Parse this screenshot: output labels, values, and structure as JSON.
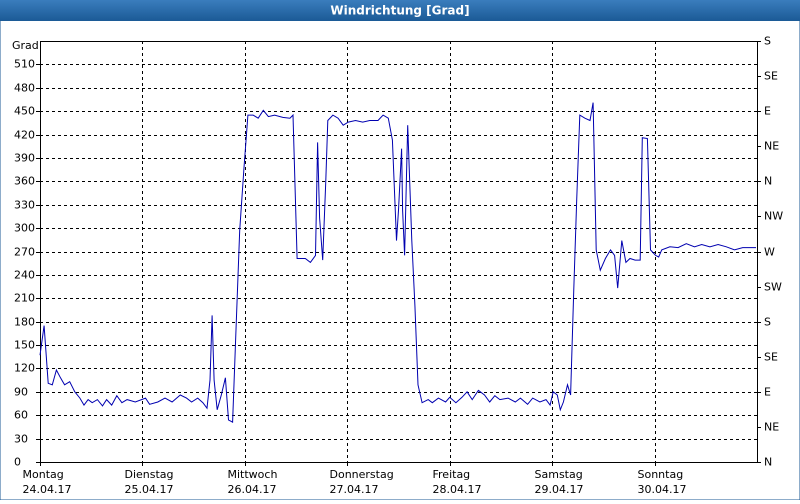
{
  "chart_data": {
    "type": "line",
    "title": "Windrichtung [Grad]",
    "y_label": "Grad",
    "xlim": [
      0,
      7
    ],
    "xticks": [
      {
        "value": 0,
        "label": "Montag"
      },
      {
        "value": 1,
        "label": "Dienstag"
      },
      {
        "value": 2,
        "label": "Mittwoch"
      },
      {
        "value": 3,
        "label": "Donnerstag"
      },
      {
        "value": 4,
        "label": "Freitag"
      },
      {
        "value": 5,
        "label": "Samstag"
      },
      {
        "value": 6,
        "label": "Sonntag"
      }
    ],
    "xtick_dates": [
      "24.04.17",
      "25.04.17",
      "26.04.17",
      "27.04.17",
      "28.04.17",
      "29.04.17",
      "30.04.17"
    ],
    "ylim": [
      0,
      540
    ],
    "yticks": [
      0,
      30,
      60,
      90,
      120,
      150,
      180,
      210,
      240,
      270,
      300,
      330,
      360,
      390,
      420,
      450,
      480,
      510
    ],
    "y2lim": [
      0,
      540
    ],
    "y2ticks": [
      {
        "value": 0,
        "label": "N"
      },
      {
        "value": 45,
        "label": "NE"
      },
      {
        "value": 90,
        "label": "E"
      },
      {
        "value": 135,
        "label": "SE"
      },
      {
        "value": 180,
        "label": "S"
      },
      {
        "value": 225,
        "label": "SW"
      },
      {
        "value": 270,
        "label": "W"
      },
      {
        "value": 315,
        "label": "NW"
      },
      {
        "value": 360,
        "label": "N"
      },
      {
        "value": 405,
        "label": "NE"
      },
      {
        "value": 450,
        "label": "E"
      },
      {
        "value": 495,
        "label": "SE"
      },
      {
        "value": 540,
        "label": "S"
      }
    ],
    "grid": true,
    "color": "#0000b0",
    "x": [
      0,
      0.04,
      0.08,
      0.12,
      0.16,
      0.2,
      0.24,
      0.29,
      0.34,
      0.39,
      0.43,
      0.47,
      0.51,
      0.56,
      0.61,
      0.65,
      0.7,
      0.75,
      0.8,
      0.85,
      0.93,
      1.03,
      1.07,
      1.15,
      1.22,
      1.29,
      1.37,
      1.43,
      1.48,
      1.54,
      1.59,
      1.63,
      1.66,
      1.68,
      1.7,
      1.73,
      1.77,
      1.81,
      1.84,
      1.88,
      1.91,
      1.95,
      1.99,
      2.03,
      2.08,
      2.13,
      2.18,
      2.23,
      2.29,
      2.37,
      2.44,
      2.47,
      2.51,
      2.59,
      2.64,
      2.69,
      2.71,
      2.73,
      2.76,
      2.79,
      2.81,
      2.86,
      2.91,
      2.96,
      3.01,
      3.08,
      3.15,
      3.22,
      3.3,
      3.35,
      3.4,
      3.44,
      3.48,
      3.5,
      3.53,
      3.54,
      3.56,
      3.59,
      3.63,
      3.66,
      3.69,
      3.73,
      3.79,
      3.83,
      3.89,
      3.96,
      4.0,
      4.06,
      4.12,
      4.17,
      4.22,
      4.28,
      4.34,
      4.39,
      4.44,
      4.49,
      4.57,
      4.64,
      4.69,
      4.76,
      4.81,
      4.88,
      4.94,
      4.98,
      5.01,
      5.05,
      5.08,
      5.11,
      5.15,
      5.18,
      5.21,
      5.24,
      5.27,
      5.32,
      5.37,
      5.4,
      5.43,
      5.47,
      5.52,
      5.57,
      5.61,
      5.64,
      5.68,
      5.72,
      5.76,
      5.81,
      5.86,
      5.88,
      5.93,
      5.96,
      6.01,
      6.04,
      6.07,
      6.15,
      6.23,
      6.31,
      6.39,
      6.46,
      6.54,
      6.62,
      6.7,
      6.78,
      6.86,
      6.93,
      6.99
    ],
    "values": [
      137,
      175,
      101,
      99,
      118,
      108,
      99,
      103,
      90,
      82,
      73,
      80,
      76,
      80,
      72,
      80,
      73,
      85,
      76,
      80,
      77,
      82,
      74,
      77,
      82,
      77,
      86,
      82,
      77,
      82,
      76,
      69,
      105,
      188,
      105,
      67,
      86,
      108,
      54,
      51,
      156,
      297,
      374,
      445,
      445,
      441,
      451,
      443,
      445,
      442,
      441,
      445,
      261,
      261,
      256,
      265,
      410,
      313,
      259,
      361,
      438,
      445,
      441,
      432,
      436,
      438,
      436,
      438,
      438,
      445,
      441,
      413,
      284,
      323,
      402,
      323,
      265,
      432,
      284,
      201,
      99,
      76,
      80,
      76,
      82,
      77,
      83,
      76,
      83,
      90,
      80,
      92,
      86,
      77,
      85,
      80,
      82,
      77,
      82,
      74,
      82,
      77,
      80,
      73,
      90,
      86,
      67,
      77,
      99,
      86,
      218,
      336,
      445,
      441,
      438,
      461,
      272,
      246,
      261,
      272,
      265,
      223,
      284,
      256,
      261,
      259,
      259,
      416,
      415,
      272,
      265,
      263,
      272,
      276,
      275,
      280,
      276,
      279,
      276,
      279,
      276,
      272,
      275,
      275,
      275
    ]
  }
}
